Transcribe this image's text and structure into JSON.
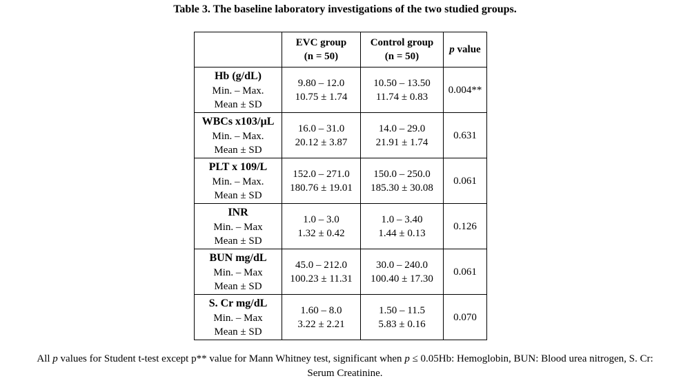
{
  "caption": "Table 3. The baseline laboratory investigations of the two studied groups.",
  "header": {
    "empty": "",
    "evc_line1": "EVC group",
    "evc_line2": "(n = 50)",
    "ctrl_line1": "Control group",
    "ctrl_line2": "(n = 50)",
    "p_italic": "p",
    "p_rest": " value"
  },
  "rows": [
    {
      "title": "Hb (g/dL)",
      "label1": "Min. – Max.",
      "label2": "Mean ± SD",
      "evc1": "9.80 – 12.0",
      "evc2": "10.75 ± 1.74",
      "ctrl1": "10.50 – 13.50",
      "ctrl2": "11.74 ± 0.83",
      "p": "0.004**"
    },
    {
      "title": "WBCs x103/µL",
      "label1": "Min. – Max.",
      "label2": "Mean ± SD",
      "evc1": "16.0 – 31.0",
      "evc2": "20.12 ± 3.87",
      "ctrl1": "14.0 – 29.0",
      "ctrl2": "21.91 ± 1.74",
      "p": "0.631"
    },
    {
      "title": "PLT x 109/L",
      "label1": "Min. – Max.",
      "label2": "Mean ± SD",
      "evc1": "152.0 – 271.0",
      "evc2": "180.76 ± 19.01",
      "ctrl1": "150.0 – 250.0",
      "ctrl2": "185.30 ± 30.08",
      "p": "0.061"
    },
    {
      "title": "INR",
      "label1": "Min. – Max",
      "label2": "Mean ± SD",
      "evc1": "1.0 – 3.0",
      "evc2": "1.32 ± 0.42",
      "ctrl1": "1.0 – 3.40",
      "ctrl2": "1.44 ± 0.13",
      "p": "0.126"
    },
    {
      "title": "BUN mg/dL",
      "label1": "Min. – Max",
      "label2": "Mean ± SD",
      "evc1": "45.0 – 212.0",
      "evc2": "100.23 ± 11.31",
      "ctrl1": "30.0 – 240.0",
      "ctrl2": "100.40 ± 17.30",
      "p": "0.061"
    },
    {
      "title": "S. Cr mg/dL",
      "label1": "Min. – Max",
      "label2": "Mean ± SD",
      "evc1": "1.60 – 8.0",
      "evc2": "3.22 ± 2.21",
      "ctrl1": "1.50 – 11.5",
      "ctrl2": "5.83 ± 0.16",
      "p": "0.070"
    }
  ],
  "footnote": {
    "part1": "All ",
    "p1": "p",
    "part2": " values for Student t-test except p** value for Mann Whitney test, significant when ",
    "p2": "p",
    "part3": " ≤ 0.05Hb: Hemoglobin, BUN: Blood urea nitrogen, S. Cr:",
    "line2": "Serum Creatinine."
  }
}
